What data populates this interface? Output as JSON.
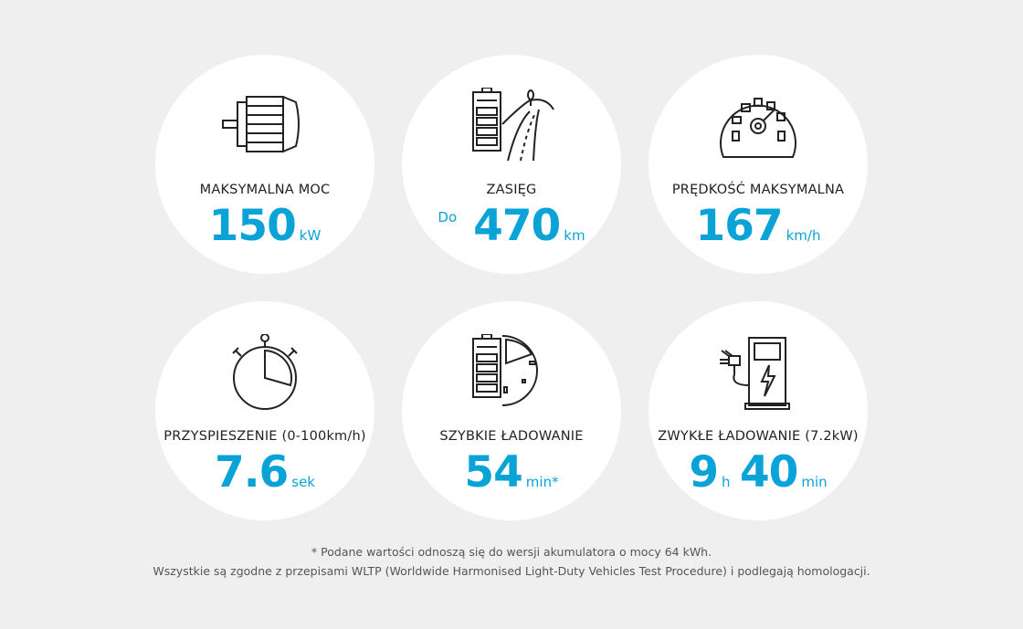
{
  "specs": [
    {
      "icon": "electric-motor-icon",
      "label": "MAKSYMALNA MOC",
      "value": "150",
      "unit": "kW"
    },
    {
      "icon": "battery-road-icon",
      "label": "ZASIĘG",
      "prefix": "Do",
      "value": "470",
      "unit": "km"
    },
    {
      "icon": "speedometer-icon",
      "label": "PRĘDKOŚĆ MAKSYMALNA",
      "value": "167",
      "unit": "km/h"
    },
    {
      "icon": "stopwatch-icon",
      "label": "PRZYSPIESZENIE (0-100km/h)",
      "value": "7.6",
      "unit": "sek"
    },
    {
      "icon": "battery-fast-charge-icon",
      "label": "SZYBKIE ŁADOWANIE",
      "value": "54",
      "unit": "min*"
    },
    {
      "icon": "charging-station-icon",
      "label": "ZWYKŁE ŁADOWANIE (7.2kW)",
      "value": "9",
      "unit": "h",
      "value2": "40",
      "unit2": "min"
    }
  ],
  "footnote": {
    "line1": "* Podane wartości odnoszą się do wersji akumulatora o mocy 64 kWh.",
    "line2": "Wszystkie są zgodne z przepisami WLTP (Worldwide Harmonised Light-Duty Vehicles Test Procedure) i podlegają homologacji."
  },
  "colors": {
    "accent": "#0aa3d8",
    "background": "#efefef",
    "circle": "#ffffff",
    "text": "#222222"
  }
}
